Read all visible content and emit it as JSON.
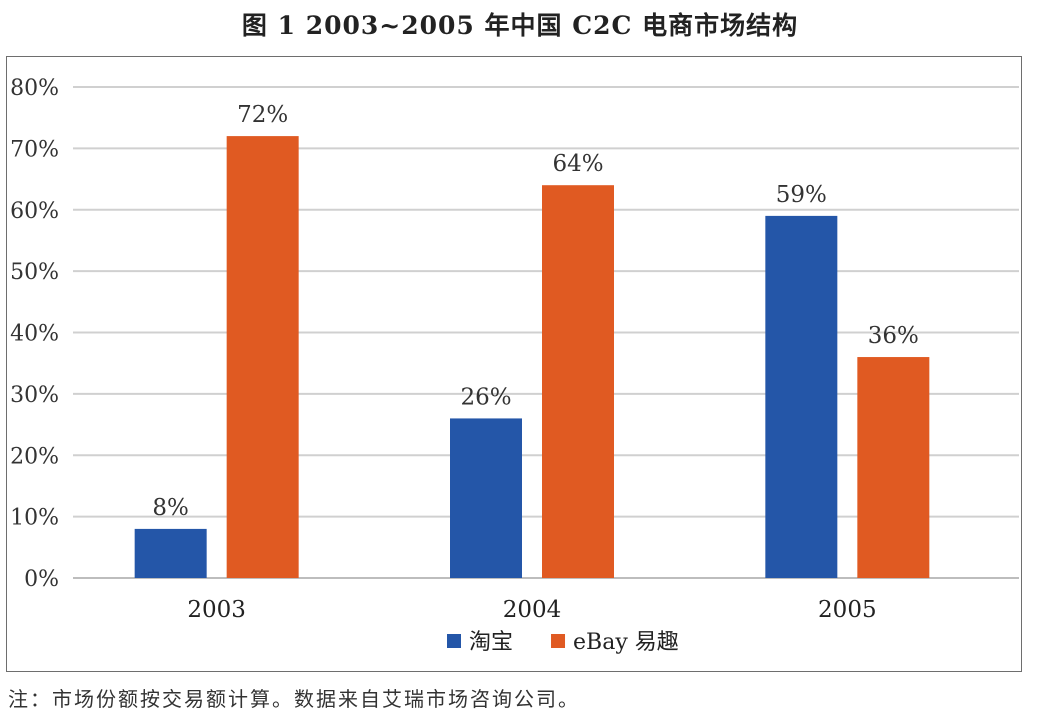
{
  "title": "图 1  2003~2005 年中国 C2C 电商市场结构",
  "footnote": "注：市场份额按交易额计算。数据来自艾瑞市场咨询公司。",
  "chart_data": {
    "type": "bar",
    "categories": [
      "2003",
      "2004",
      "2005"
    ],
    "series": [
      {
        "name": "淘宝",
        "color": "#2456a8",
        "values": [
          8,
          26,
          59
        ],
        "labels": [
          "8%",
          "26%",
          "59%"
        ]
      },
      {
        "name": "eBay 易趣",
        "color": "#e05a22",
        "values": [
          72,
          64,
          36
        ],
        "labels": [
          "72%",
          "64%",
          "36%"
        ]
      }
    ],
    "yticks": [
      "0%",
      "10%",
      "20%",
      "30%",
      "40%",
      "50%",
      "60%",
      "70%",
      "80%"
    ],
    "ylim": [
      0,
      80
    ],
    "grid": true,
    "legend_position": "bottom"
  }
}
